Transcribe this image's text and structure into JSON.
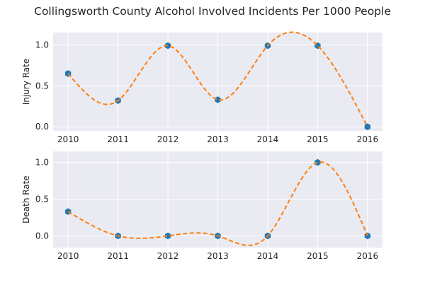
{
  "title": "Collingsworth County Alcohol Involved Incidents Per 1000 People",
  "colors": {
    "background": "#eaeaf2",
    "grid": "#ffffff",
    "marker": "#1f77b4",
    "curve": "#ff7f0e"
  },
  "chart_data": [
    {
      "type": "line",
      "title": "",
      "ylabel": "Injury Rate",
      "xlabel": "",
      "x": [
        2010,
        2011,
        2012,
        2013,
        2014,
        2015,
        2016
      ],
      "xlim": [
        2009.7,
        2016.3
      ],
      "ylim": [
        -0.05,
        1.15
      ],
      "yticks": [
        "0.0",
        "0.5",
        "1.0"
      ],
      "ytick_values": [
        0,
        0.5,
        1.0
      ],
      "grid": true,
      "series": [
        {
          "values": [
            0.65,
            0.32,
            0.99,
            0.33,
            0.99,
            0.99,
            0.0
          ],
          "style": "markers"
        },
        {
          "values": [
            0.65,
            0.32,
            0.99,
            0.33,
            0.99,
            0.99,
            0.0
          ],
          "style": "smooth dashed curve"
        }
      ]
    },
    {
      "type": "line",
      "title": "",
      "ylabel": "Death Rate",
      "xlabel": "",
      "x": [
        2010,
        2011,
        2012,
        2013,
        2014,
        2015,
        2016
      ],
      "xlim": [
        2009.7,
        2016.3
      ],
      "ylim": [
        -0.16,
        1.15
      ],
      "yticks": [
        "0.0",
        "0.5",
        "1.0"
      ],
      "ytick_values": [
        0,
        0.5,
        1.0
      ],
      "grid": true,
      "series": [
        {
          "values": [
            0.33,
            0.0,
            0.0,
            0.0,
            0.0,
            1.0,
            0.0
          ],
          "style": "markers"
        },
        {
          "values": [
            0.33,
            0.0,
            0.0,
            0.0,
            0.0,
            1.0,
            0.0
          ],
          "style": "smooth dashed curve"
        }
      ]
    }
  ]
}
